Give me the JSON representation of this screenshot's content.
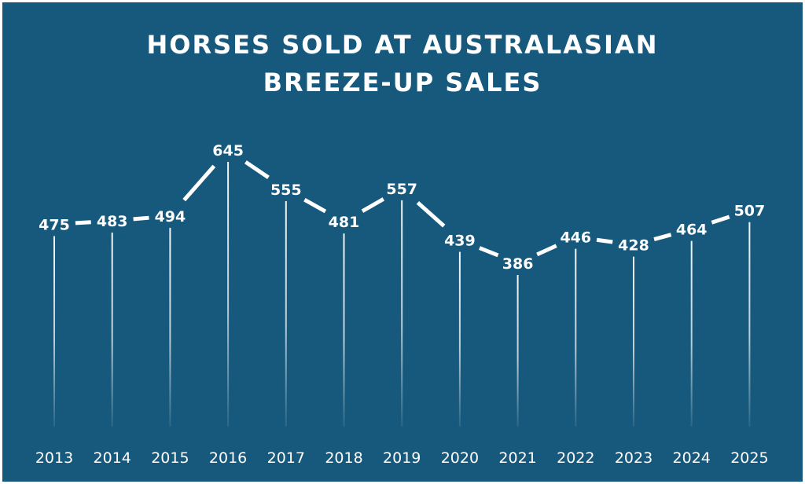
{
  "chart_data": {
    "type": "line",
    "title_lines": [
      "HORSES SOLD AT AUSTRALASIAN",
      "BREEZE-UP SALES"
    ],
    "categories": [
      "2013",
      "2014",
      "2015",
      "2016",
      "2017",
      "2018",
      "2019",
      "2020",
      "2021",
      "2022",
      "2023",
      "2024",
      "2025"
    ],
    "values": [
      475,
      483,
      494,
      645,
      555,
      481,
      557,
      439,
      386,
      446,
      428,
      464,
      507
    ],
    "xlabel": "",
    "ylabel": "",
    "ylim": [
      386,
      645
    ],
    "grid": false,
    "legend": "none"
  },
  "colors": {
    "background": "#17597c",
    "line": "#ffffff",
    "text": "#ffffff"
  }
}
